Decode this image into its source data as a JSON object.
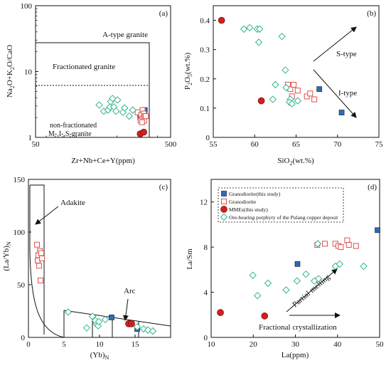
{
  "colors": {
    "granodiorite_this_study": "#2a6db5",
    "granodiorite": "#e0504b",
    "mmes": "#d21f1f",
    "ore_porphyry": "#33b58a",
    "axis": "#111111"
  },
  "chart_data": [
    {
      "type": "scatter",
      "panel": "(a)",
      "xlabel": "Zr+Nb+Ce+Y(ppm)",
      "ylabel": "Na2O+K2O/CaO",
      "x_scale": "log",
      "y_scale": "log",
      "xlim": [
        50,
        500
      ],
      "ylim": [
        1,
        100
      ],
      "x_ticks": [
        "50",
        "500"
      ],
      "y_ticks": [
        "1",
        "10",
        "100"
      ],
      "field_labels": [
        "A-type granite",
        "Fractionated granite",
        "non-fractionated",
        "M-,I-,S-granite"
      ],
      "series": [
        {
          "name": "Granodiorite(this study)",
          "marker": "square-filled",
          "points": [
            [
              298,
              2.0
            ],
            [
              322,
              2.6
            ]
          ]
        },
        {
          "name": "Granodiorite",
          "marker": "square-open",
          "points": [
            [
              285,
              2.4
            ],
            [
              303,
              2.2
            ],
            [
              310,
              2.6
            ],
            [
              316,
              2.3
            ],
            [
              300,
              1.8
            ],
            [
              310,
              1.9
            ],
            [
              318,
              1.8
            ],
            [
              322,
              2.1
            ],
            [
              307,
              1.7
            ],
            [
              328,
              2.1
            ]
          ]
        },
        {
          "name": "MMEs(this study)",
          "marker": "circle-filled",
          "points": [
            [
              298,
              1.13
            ],
            [
              316,
              1.2
            ]
          ]
        },
        {
          "name": "Ore-bearing porphyry of the Pulang copper deposit",
          "marker": "diamond-open",
          "points": [
            [
              148,
              3.1
            ],
            [
              160,
              2.5
            ],
            [
              172,
              2.6
            ],
            [
              178,
              2.9
            ],
            [
              180,
              3.5
            ],
            [
              186,
              3.9
            ],
            [
              190,
              2.9
            ],
            [
              197,
              2.5
            ],
            [
              202,
              3.7
            ],
            [
              222,
              2.4
            ],
            [
              228,
              2.8
            ],
            [
              247,
              2.1
            ],
            [
              262,
              2.6
            ]
          ]
        }
      ]
    },
    {
      "type": "scatter",
      "panel": "(b)",
      "xlabel": "SiO2(wt.%)",
      "ylabel": "P2O5(wt.%)",
      "xlim": [
        55,
        75
      ],
      "ylim": [
        0,
        0.45
      ],
      "x_ticks": [
        "55",
        "60",
        "65",
        "70",
        "75"
      ],
      "y_ticks": [
        "0",
        "0.1",
        "0.2",
        "0.3",
        "0.4"
      ],
      "trend_labels": [
        "S-type",
        "I-type"
      ],
      "series": [
        {
          "name": "Granodiorite(this study)",
          "marker": "square-filled",
          "points": [
            [
              67.8,
              0.165
            ],
            [
              70.5,
              0.085
            ]
          ]
        },
        {
          "name": "Granodiorite",
          "marker": "square-open",
          "points": [
            [
              64.0,
              0.18
            ],
            [
              64.3,
              0.165
            ],
            [
              64.7,
              0.18
            ],
            [
              65.2,
              0.16
            ],
            [
              66.3,
              0.14
            ],
            [
              66.7,
              0.15
            ],
            [
              67.2,
              0.13
            ],
            [
              64.5,
              0.14
            ]
          ]
        },
        {
          "name": "MMEs(this study)",
          "marker": "circle-filled",
          "points": [
            [
              56.0,
              0.4
            ],
            [
              60.8,
              0.125
            ]
          ]
        },
        {
          "name": "Ore-bearing porphyry of the Pulang copper deposit",
          "marker": "diamond-open",
          "points": [
            [
              58.7,
              0.37
            ],
            [
              59.4,
              0.375
            ],
            [
              60.3,
              0.37
            ],
            [
              60.6,
              0.37
            ],
            [
              63.3,
              0.345
            ],
            [
              60.5,
              0.325
            ],
            [
              63.7,
              0.23
            ],
            [
              62.5,
              0.18
            ],
            [
              63.8,
              0.17
            ],
            [
              62.2,
              0.13
            ],
            [
              64.3,
              0.13
            ],
            [
              65.2,
              0.125
            ],
            [
              64.2,
              0.12
            ],
            [
              64.5,
              0.115
            ]
          ]
        }
      ]
    },
    {
      "type": "scatter",
      "panel": "(c)",
      "xlabel": "(Yb)N",
      "ylabel": "(La/Yb)N",
      "xlim": [
        0,
        20
      ],
      "ylim": [
        0,
        150
      ],
      "x_ticks": [
        "0",
        "5",
        "10",
        "15"
      ],
      "y_ticks": [
        "0",
        "50",
        "100",
        "150"
      ],
      "field_labels": [
        "Adakite",
        "Arc"
      ],
      "series": [
        {
          "name": "Granodiorite(this study)",
          "marker": "square-filled",
          "points": [
            [
              11.7,
              19
            ],
            [
              15.3,
              8
            ]
          ]
        },
        {
          "name": "Granodiorite",
          "marker": "square-open",
          "points": [
            [
              1.2,
              88
            ],
            [
              1.6,
              82
            ],
            [
              1.4,
              78
            ],
            [
              1.8,
              80
            ],
            [
              1.3,
              73
            ],
            [
              1.9,
              75
            ],
            [
              1.5,
              68
            ],
            [
              1.7,
              54
            ]
          ]
        },
        {
          "name": "MMEs(this study)",
          "marker": "circle-filled",
          "points": [
            [
              14.1,
              13
            ],
            [
              14.5,
              13
            ]
          ]
        },
        {
          "name": "Ore-bearing porphyry of the Pulang copper deposit",
          "marker": "diamond-open",
          "points": [
            [
              5.6,
              24
            ],
            [
              8.2,
              9
            ],
            [
              9.0,
              20
            ],
            [
              9.5,
              13
            ],
            [
              9.8,
              11
            ],
            [
              9.4,
              16
            ],
            [
              9.9,
              15
            ],
            [
              10.8,
              17
            ],
            [
              15.3,
              10
            ],
            [
              16.2,
              8
            ],
            [
              16.8,
              7
            ],
            [
              17.5,
              6
            ]
          ]
        }
      ]
    },
    {
      "type": "scatter",
      "panel": "(d)",
      "xlabel": "La(ppm)",
      "ylabel": "La/Sm",
      "xlim": [
        10,
        50
      ],
      "ylim": [
        0,
        14
      ],
      "x_ticks": [
        "10",
        "20",
        "30",
        "40",
        "50"
      ],
      "y_ticks": [
        "0",
        "4",
        "8",
        "12"
      ],
      "trend_labels": [
        "Partial melting",
        "Fractional crystallization"
      ],
      "legend": {
        "placement": "top-left",
        "entries": [
          {
            "label": "Granodiorite(this study)",
            "marker": "square-filled"
          },
          {
            "label": "Granodiorite",
            "marker": "square-open"
          },
          {
            "label": "MMEs(this study)",
            "marker": "circle-filled"
          },
          {
            "label": "Ore-bearing porphyry of the Pulang copper deposit",
            "marker": "diamond-open"
          }
        ]
      },
      "series": [
        {
          "name": "Granodiorite(this study)",
          "marker": "square-filled",
          "points": [
            [
              30.5,
              6.5
            ],
            [
              49.5,
              9.5
            ]
          ]
        },
        {
          "name": "Granodiorite",
          "marker": "square-open",
          "points": [
            [
              35.2,
              8.2
            ],
            [
              37.0,
              8.3
            ],
            [
              39.5,
              8.3
            ],
            [
              40.2,
              8.1
            ],
            [
              40.8,
              8.0
            ],
            [
              42.3,
              8.6
            ],
            [
              42.7,
              8.2
            ],
            [
              44.4,
              8.1
            ]
          ]
        },
        {
          "name": "MMEs(this study)",
          "marker": "circle-filled",
          "points": [
            [
              12.2,
              2.2
            ],
            [
              22.7,
              1.9
            ]
          ]
        },
        {
          "name": "Ore-bearing porphyry of the Pulang copper deposit",
          "marker": "diamond-open",
          "points": [
            [
              19.9,
              5.5
            ],
            [
              21.0,
              3.7
            ],
            [
              23.5,
              4.8
            ],
            [
              27.8,
              4.2
            ],
            [
              30.4,
              5.0
            ],
            [
              32.5,
              5.6
            ],
            [
              34.5,
              5.0
            ],
            [
              35.3,
              8.3
            ],
            [
              35.5,
              5.2
            ],
            [
              39.5,
              6.3
            ],
            [
              40.5,
              6.5
            ],
            [
              46.2,
              6.3
            ]
          ]
        }
      ]
    }
  ]
}
